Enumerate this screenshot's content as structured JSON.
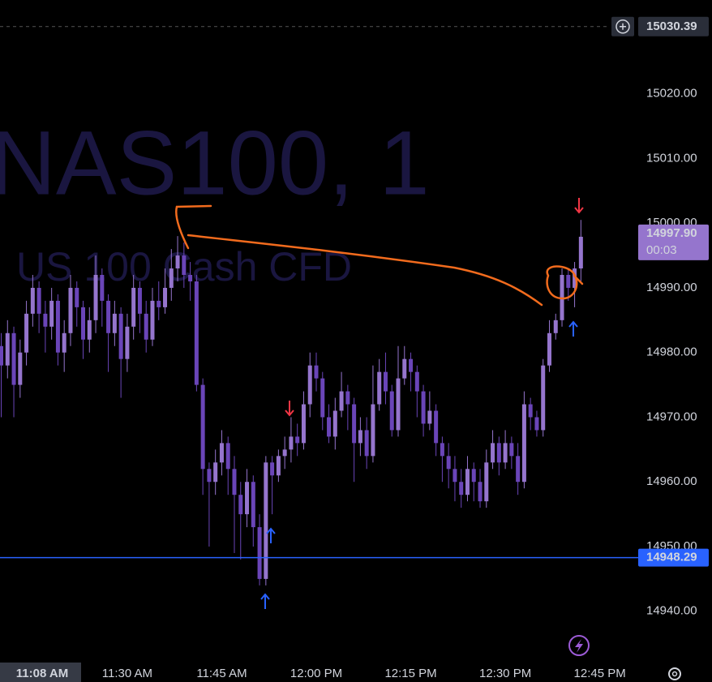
{
  "chart_data": {
    "type": "candlestick",
    "watermark_title": "NAS100, 1",
    "watermark_subtitle": "US 100 Cash CFD",
    "categories": [
      null,
      null,
      null,
      null,
      null,
      null,
      null,
      null,
      null,
      null,
      null,
      null,
      null,
      null,
      null,
      null,
      null,
      null,
      null,
      null,
      "11:30 AM",
      null,
      null,
      null,
      null,
      null,
      null,
      null,
      null,
      null,
      null,
      null,
      null,
      null,
      null,
      "11:45 AM",
      null,
      null,
      null,
      null,
      null,
      null,
      null,
      null,
      null,
      null,
      null,
      null,
      null,
      null,
      "12:00 PM",
      null,
      null,
      null,
      null,
      null,
      null,
      null,
      null,
      null,
      null,
      null,
      null,
      null,
      null,
      "12:15 PM",
      null,
      null,
      null,
      null,
      null,
      null,
      null,
      null,
      null,
      null,
      null,
      null,
      null,
      null,
      "12:30 PM",
      null,
      null,
      null,
      null,
      null,
      null,
      null,
      null,
      null,
      null,
      null,
      null
    ],
    "x_end_label": "12:45 PM",
    "cursor_time": "11:08 AM",
    "open": [
      14981,
      14978,
      14983,
      14975,
      14980,
      14986,
      14990,
      14986,
      14984,
      14988,
      14980,
      14983,
      14990,
      14987,
      14982,
      14985,
      14992,
      14988,
      14983,
      14986,
      14979,
      14984,
      14990,
      14986,
      14982,
      14988,
      14987,
      14990,
      14993,
      14995,
      14992,
      14991,
      14975,
      14962,
      14960,
      14963,
      14966,
      14962,
      14958,
      14955,
      14960,
      14953,
      14945,
      14963,
      14961,
      14964,
      14965,
      14967,
      14966,
      14972,
      14978,
      14976,
      14970,
      14967,
      14971,
      14974,
      14972,
      14966,
      14968,
      14964,
      14972,
      14977,
      14974,
      14968,
      14976,
      14979,
      14977,
      14974,
      14969,
      14971,
      14966,
      14964,
      14962,
      14960,
      14958,
      14962,
      14960,
      14957,
      14963,
      14966,
      14963,
      14966,
      14964,
      14960,
      14972,
      14970,
      14968,
      14978,
      14983,
      14985,
      14992,
      14990,
      14993
    ],
    "high": [
      14983,
      14985,
      14984,
      14982,
      14988,
      14992,
      14991,
      14988,
      14990,
      14989,
      14985,
      14992,
      14991,
      14988,
      14987,
      14995,
      14993,
      14989,
      14988,
      14987,
      14986,
      14992,
      14991,
      14988,
      14990,
      14991,
      14993,
      14996,
      14998,
      14997,
      14994,
      14992,
      14976,
      14963,
      14965,
      14968,
      14967,
      14964,
      14960,
      14962,
      14961,
      14955,
      14964,
      14964,
      14965,
      14967,
      14970,
      14969,
      14974,
      14980,
      14980,
      14977,
      14972,
      14973,
      14977,
      14975,
      14973,
      14970,
      14970,
      14978,
      14979,
      14980,
      14975,
      14981,
      14981,
      14980,
      14978,
      14975,
      14974,
      14972,
      14967,
      14966,
      14964,
      14962,
      14964,
      14963,
      14962,
      14965,
      14968,
      14967,
      14968,
      14967,
      14966,
      14974,
      14973,
      14971,
      14979,
      14985,
      14986,
      14993,
      14993,
      14994,
      15000.5
    ],
    "low": [
      14970,
      14976,
      14970,
      14973,
      14978,
      14984,
      14983,
      14980,
      14982,
      14978,
      14977,
      14981,
      14984,
      14979,
      14980,
      14983,
      14984,
      14977,
      14981,
      14973,
      14977,
      14982,
      14983,
      14980,
      14981,
      14985,
      14986,
      14988,
      14991,
      14990,
      14988,
      14974,
      14958,
      14950,
      14958,
      14961,
      14958,
      14949,
      14948,
      14953,
      14950,
      14944,
      14944,
      14955,
      14960,
      14962,
      14963,
      14964,
      14965,
      14970,
      14974,
      14968,
      14966,
      14965,
      14970,
      14968,
      14960,
      14964,
      14962,
      14963,
      14971,
      14972,
      14967,
      14967,
      14975,
      14974,
      14970,
      14967,
      14968,
      14964,
      14960,
      14959,
      14957,
      14956,
      14957,
      14957,
      14956,
      14956,
      14962,
      14961,
      14962,
      14962,
      14958,
      14959,
      14968,
      14967,
      14967,
      14977,
      14982,
      14984,
      14988,
      14987,
      14991
    ],
    "close": [
      14978,
      14983,
      14975,
      14980,
      14986,
      14990,
      14986,
      14984,
      14988,
      14980,
      14983,
      14990,
      14987,
      14982,
      14985,
      14992,
      14988,
      14983,
      14986,
      14979,
      14984,
      14990,
      14986,
      14982,
      14988,
      14987,
      14990,
      14993,
      14995,
      14992,
      14991,
      14975,
      14962,
      14960,
      14963,
      14966,
      14962,
      14958,
      14955,
      14960,
      14953,
      14945,
      14963,
      14961,
      14964,
      14965,
      14967,
      14966,
      14972,
      14978,
      14976,
      14970,
      14967,
      14971,
      14974,
      14972,
      14966,
      14968,
      14964,
      14972,
      14977,
      14974,
      14968,
      14976,
      14979,
      14977,
      14974,
      14969,
      14971,
      14966,
      14964,
      14962,
      14960,
      14958,
      14962,
      14960,
      14957,
      14963,
      14966,
      14963,
      14966,
      14964,
      14960,
      14972,
      14970,
      14968,
      14978,
      14983,
      14985,
      14992,
      14990,
      14993,
      14997.9
    ],
    "up_color": "#9575cd",
    "down_color": "#6a45b8",
    "ylim": [
      14932.7,
      15034.5
    ],
    "yticks": [
      {
        "value": 14940,
        "label": "14940.00"
      },
      {
        "value": 14950,
        "label": "14950.00"
      },
      {
        "value": 14960,
        "label": "14960.00"
      },
      {
        "value": 14970,
        "label": "14970.00"
      },
      {
        "value": 14980,
        "label": "14980.00"
      },
      {
        "value": 14990,
        "label": "14990.00"
      },
      {
        "value": 15000,
        "label": "15000.00"
      },
      {
        "value": 15010,
        "label": "15010.00"
      },
      {
        "value": 15020,
        "label": "15020.00"
      }
    ],
    "horizontal_line": {
      "value": 14948.29,
      "label": "14948.29",
      "color": "#2962ff"
    },
    "crosshair": {
      "value": 15030.39,
      "label": "15030.39"
    },
    "last_price": {
      "value": 14997.9,
      "label": "14997.90",
      "countdown": "00:03",
      "color": "#9575cd"
    }
  }
}
